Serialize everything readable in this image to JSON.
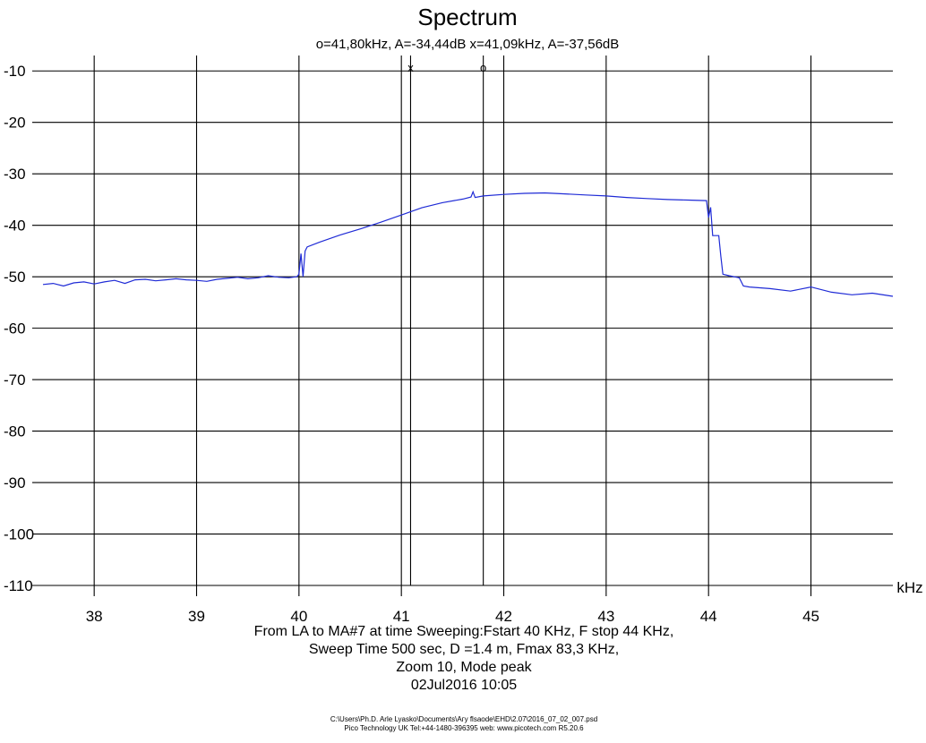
{
  "chart_data": {
    "type": "line",
    "title": "Spectrum",
    "subtitle": "o=41,80kHz, A=-34,44dB  x=41,09kHz, A=-37,56dB",
    "xlabel": "kHz",
    "ylabel": "",
    "xlim": [
      37.5,
      45.8
    ],
    "ylim": [
      -110,
      -7
    ],
    "x_ticks": [
      38,
      39,
      40,
      41,
      42,
      43,
      44,
      45
    ],
    "y_ticks": [
      -10,
      -20,
      -30,
      -40,
      -50,
      -60,
      -70,
      -80,
      -90,
      -100,
      -110
    ],
    "grid": true,
    "legend": "none",
    "series_color": "#1f2bd6",
    "cursors": [
      {
        "label": "x",
        "x": 41.09,
        "value": -37.56
      },
      {
        "label": "o",
        "x": 41.8,
        "value": -34.44
      }
    ],
    "series": [
      {
        "x": [
          37.5,
          37.6,
          37.7,
          37.8,
          37.9,
          38.0,
          38.1,
          38.2,
          38.3,
          38.4,
          38.5,
          38.6,
          38.7,
          38.8,
          38.9,
          39.0,
          39.1,
          39.2,
          39.3,
          39.4,
          39.5,
          39.6,
          39.7,
          39.8,
          39.9,
          39.98,
          40.0,
          40.02,
          40.04,
          40.06,
          40.08,
          40.2,
          40.4,
          40.6,
          40.8,
          41.0,
          41.2,
          41.4,
          41.6,
          41.68,
          41.7,
          41.72,
          41.8,
          42.0,
          42.2,
          42.4,
          42.6,
          42.8,
          43.0,
          43.2,
          43.4,
          43.6,
          43.8,
          43.98,
          44.0,
          44.02,
          44.04,
          44.1,
          44.12,
          44.14,
          44.2,
          44.3,
          44.32,
          44.34,
          44.4,
          44.6,
          44.8,
          45.0,
          45.2,
          45.4,
          45.6,
          45.8
        ],
        "values": [
          -51.5,
          -51.3,
          -51.8,
          -51.2,
          -51.0,
          -51.4,
          -51.0,
          -50.7,
          -51.3,
          -50.6,
          -50.5,
          -50.8,
          -50.6,
          -50.4,
          -50.6,
          -50.7,
          -50.9,
          -50.5,
          -50.3,
          -50.1,
          -50.4,
          -50.2,
          -49.8,
          -50.1,
          -50.2,
          -50.0,
          -49.5,
          -45.5,
          -50.0,
          -45.0,
          -44.2,
          -43.3,
          -41.9,
          -40.7,
          -39.4,
          -38.0,
          -36.6,
          -35.6,
          -34.9,
          -34.5,
          -33.5,
          -34.6,
          -34.3,
          -34.0,
          -33.8,
          -33.7,
          -33.9,
          -34.1,
          -34.3,
          -34.6,
          -34.8,
          -35.0,
          -35.1,
          -35.2,
          -38.5,
          -36.5,
          -42.0,
          -42.0,
          -46.0,
          -49.5,
          -49.8,
          -50.2,
          -51.0,
          -51.8,
          -52.0,
          -52.3,
          -52.8,
          -52.0,
          -53.0,
          -53.5,
          -53.2,
          -53.8
        ]
      }
    ],
    "caption": [
      "From  LA   to  MA#7 at time Sweeping:Fstart 40 KHz, F stop 44 KHz,",
      "Sweep Time 500 sec, D =1.4 m, Fmax 83,3 KHz,",
      "Zoom 10, Mode peak",
      "02Jul2016  10:05"
    ],
    "footer": [
      "C:\\Users\\Ph.D. Arle Lyasko\\Documents\\Агу flsaode\\EHD\\2.07\\2016_07_02_007.psd",
      "Pico Technology UK  Tel:+44-1480-396395  web: www.picotech.com R5.20.6"
    ]
  }
}
